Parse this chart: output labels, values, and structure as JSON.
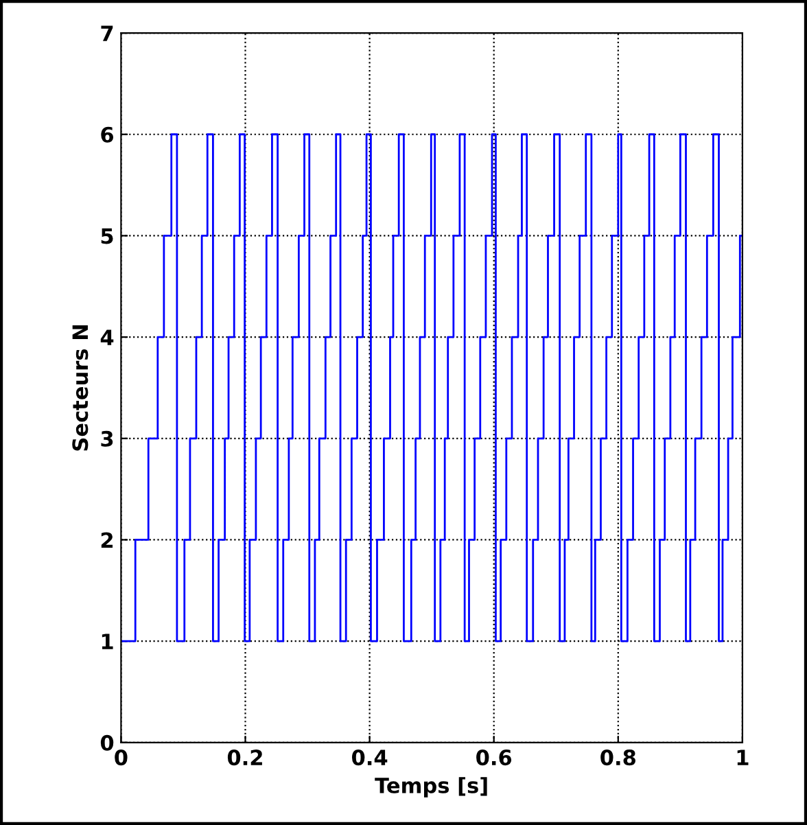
{
  "chart_data": {
    "type": "step",
    "xlabel": "Temps [s]",
    "ylabel": "Secteurs N",
    "xlim": [
      0,
      1
    ],
    "ylim": [
      0,
      7
    ],
    "xticks": [
      0,
      0.2,
      0.4,
      0.6,
      0.8,
      1
    ],
    "yticks": [
      0,
      1,
      2,
      3,
      4,
      5,
      6,
      7
    ],
    "grid": true,
    "line_style": "solid",
    "marker": "none",
    "series": [
      {
        "color": "#0000ff",
        "x": [
          0,
          0.023,
          0.044,
          0.059,
          0.069,
          0.081,
          0.09,
          0.102,
          0.111,
          0.121,
          0.13,
          0.139,
          0.148,
          0.157,
          0.167,
          0.173,
          0.182,
          0.191,
          0.199,
          0.207,
          0.217,
          0.225,
          0.234,
          0.243,
          0.252,
          0.261,
          0.27,
          0.276,
          0.286,
          0.295,
          0.303,
          0.312,
          0.319,
          0.329,
          0.337,
          0.346,
          0.353,
          0.362,
          0.371,
          0.38,
          0.389,
          0.395,
          0.402,
          0.412,
          0.423,
          0.433,
          0.438,
          0.447,
          0.455,
          0.467,
          0.474,
          0.481,
          0.489,
          0.499,
          0.505,
          0.514,
          0.521,
          0.526,
          0.535,
          0.545,
          0.553,
          0.56,
          0.569,
          0.578,
          0.587,
          0.597,
          0.603,
          0.611,
          0.62,
          0.629,
          0.639,
          0.645,
          0.653,
          0.663,
          0.671,
          0.68,
          0.687,
          0.697,
          0.706,
          0.714,
          0.72,
          0.729,
          0.738,
          0.748,
          0.757,
          0.763,
          0.772,
          0.781,
          0.79,
          0.8,
          0.805,
          0.815,
          0.824,
          0.833,
          0.842,
          0.85,
          0.858,
          0.867,
          0.875,
          0.884,
          0.891,
          0.9,
          0.909,
          0.916,
          0.924,
          0.934,
          0.943,
          0.953,
          0.962,
          0.968,
          0.977,
          0.984,
          0.996,
          1
        ],
        "values": [
          1,
          2,
          3,
          4,
          5,
          6,
          1,
          2,
          3,
          4,
          5,
          6,
          1,
          2,
          3,
          4,
          5,
          6,
          1,
          2,
          3,
          4,
          5,
          6,
          1,
          2,
          3,
          4,
          5,
          6,
          1,
          2,
          3,
          4,
          5,
          6,
          1,
          2,
          3,
          4,
          5,
          6,
          1,
          2,
          3,
          4,
          5,
          6,
          1,
          2,
          3,
          4,
          5,
          6,
          1,
          2,
          3,
          4,
          5,
          6,
          1,
          2,
          3,
          4,
          5,
          6,
          1,
          2,
          3,
          4,
          5,
          6,
          1,
          2,
          3,
          4,
          5,
          6,
          1,
          2,
          3,
          4,
          5,
          6,
          1,
          2,
          3,
          4,
          5,
          6,
          1,
          2,
          3,
          4,
          5,
          6,
          1,
          2,
          3,
          4,
          5,
          6,
          1,
          2,
          3,
          4,
          5,
          6,
          1,
          2,
          3,
          4,
          5,
          5
        ]
      }
    ]
  }
}
